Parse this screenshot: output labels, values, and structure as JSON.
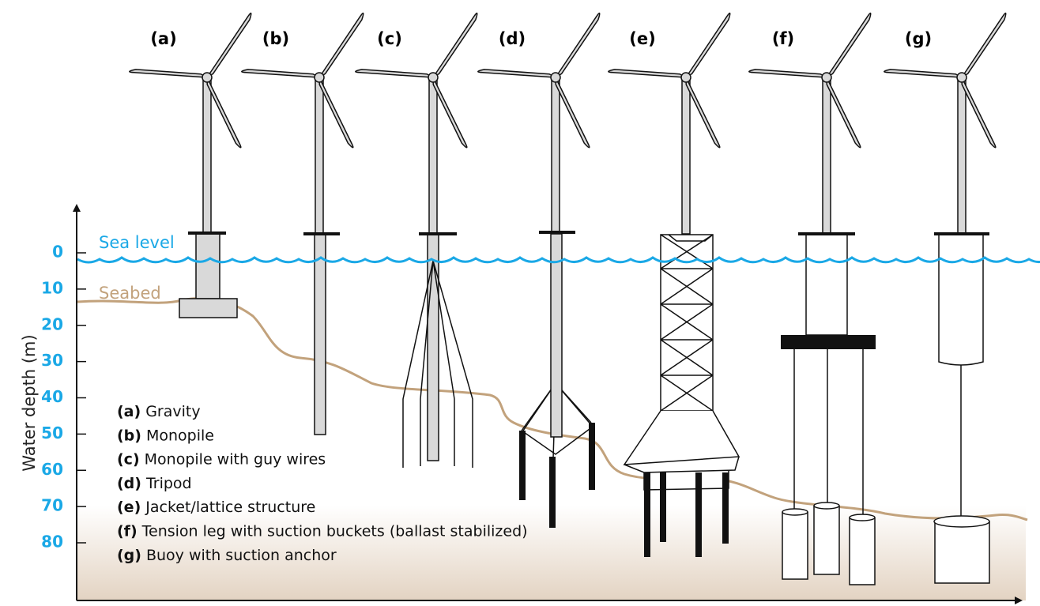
{
  "labels": [
    "(a)",
    "(b)",
    "(c)",
    "(d)",
    "(e)",
    "(f)",
    "(g)"
  ],
  "sea_level": "Sea level",
  "seabed": "Seabed",
  "axis": {
    "label": "Water depth (m)",
    "ticks": [
      0,
      10,
      20,
      30,
      40,
      50,
      60,
      70,
      80
    ]
  },
  "legend": [
    {
      "key": "(a)",
      "text": "Gravity"
    },
    {
      "key": "(b)",
      "text": "Monopile"
    },
    {
      "key": "(c)",
      "text": "Monopile with guy wires"
    },
    {
      "key": "(d)",
      "text": "Tripod"
    },
    {
      "key": "(e)",
      "text": "Jacket/lattice structure"
    },
    {
      "key": "(f)",
      "text": "Tension leg with suction buckets (ballast stabilized)"
    },
    {
      "key": "(g)",
      "text": "Buoy with suction anchor"
    }
  ]
}
